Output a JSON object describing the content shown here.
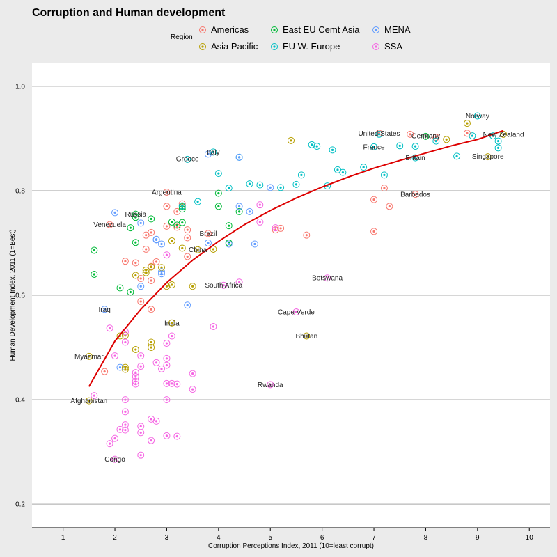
{
  "chart_data": {
    "type": "scatter",
    "title": "Corruption and Human development",
    "xlabel": "Corruption Perceptions Index, 2011 (10=least corrupt)",
    "ylabel": "Human Development Index, 2011 (1=Best)",
    "xlim": [
      0.4,
      10.4
    ],
    "ylim": [
      0.155,
      1.045
    ],
    "x_ticks": [
      1,
      2,
      3,
      4,
      5,
      6,
      7,
      8,
      9,
      10
    ],
    "y_ticks": [
      0.2,
      0.4,
      0.6,
      0.8,
      1.0
    ],
    "y_tick_labels": [
      "0.2",
      "0.4",
      "0.6",
      "0.8",
      "1.0"
    ],
    "grid": "horizontal",
    "legend": {
      "title": "Region",
      "placement": "top",
      "entries": [
        {
          "name": "Americas",
          "color": "#f8766d"
        },
        {
          "name": "Asia Pacific",
          "color": "#b79f00"
        },
        {
          "name": "East EU Cemt Asia",
          "color": "#00ba38"
        },
        {
          "name": "EU W. Europe",
          "color": "#00bfc4"
        },
        {
          "name": "MENA",
          "color": "#619cff"
        },
        {
          "name": "SSA",
          "color": "#f564e3"
        }
      ]
    },
    "trend": {
      "color": "#dd0000",
      "x": [
        1.5,
        2.0,
        2.5,
        3.0,
        3.5,
        4.0,
        4.5,
        5.0,
        5.5,
        6.0,
        6.5,
        7.0,
        7.5,
        8.0,
        8.5,
        9.0,
        9.5
      ],
      "y": [
        0.425,
        0.512,
        0.573,
        0.624,
        0.667,
        0.703,
        0.735,
        0.762,
        0.786,
        0.807,
        0.826,
        0.843,
        0.858,
        0.872,
        0.886,
        0.898,
        0.915
      ]
    },
    "series": [
      {
        "name": "Americas",
        "points": [
          [
            7.1,
            0.91
          ],
          [
            8.8,
            0.91
          ],
          [
            7.7,
            0.908
          ],
          [
            8.2,
            0.902
          ],
          [
            3.0,
            0.797
          ],
          [
            7.2,
            0.805
          ],
          [
            7.8,
            0.793
          ],
          [
            7.0,
            0.783
          ],
          [
            7.3,
            0.77
          ],
          [
            3.0,
            0.77
          ],
          [
            3.2,
            0.76
          ],
          [
            3.3,
            0.775
          ],
          [
            3.0,
            0.732
          ],
          [
            3.4,
            0.725
          ],
          [
            3.2,
            0.73
          ],
          [
            5.7,
            0.715
          ],
          [
            7.0,
            0.722
          ],
          [
            5.2,
            0.728
          ],
          [
            5.1,
            0.725
          ],
          [
            3.8,
            0.718
          ],
          [
            2.7,
            0.72
          ],
          [
            2.6,
            0.715
          ],
          [
            3.4,
            0.71
          ],
          [
            2.6,
            0.688
          ],
          [
            2.8,
            0.664
          ],
          [
            2.7,
            0.655
          ],
          [
            2.2,
            0.665
          ],
          [
            2.5,
            0.632
          ],
          [
            2.7,
            0.628
          ],
          [
            2.5,
            0.588
          ],
          [
            2.7,
            0.573
          ],
          [
            1.9,
            0.735
          ],
          [
            2.4,
            0.662
          ],
          [
            1.8,
            0.454
          ],
          [
            3.4,
            0.674
          ]
        ]
      },
      {
        "name": "Asia Pacific",
        "points": [
          [
            5.4,
            0.896
          ],
          [
            8.8,
            0.929
          ],
          [
            9.2,
            0.865
          ],
          [
            8.4,
            0.898
          ],
          [
            9.5,
            0.908
          ],
          [
            3.6,
            0.687
          ],
          [
            3.3,
            0.69
          ],
          [
            3.1,
            0.704
          ],
          [
            3.9,
            0.688
          ],
          [
            2.7,
            0.654
          ],
          [
            2.6,
            0.643
          ],
          [
            2.6,
            0.648
          ],
          [
            2.4,
            0.638
          ],
          [
            3.0,
            0.617
          ],
          [
            3.5,
            0.617
          ],
          [
            3.1,
            0.62
          ],
          [
            3.1,
            0.547
          ],
          [
            2.1,
            0.522
          ],
          [
            2.2,
            0.523
          ],
          [
            2.7,
            0.51
          ],
          [
            2.7,
            0.5
          ],
          [
            2.4,
            0.496
          ],
          [
            2.2,
            0.462
          ],
          [
            2.2,
            0.458
          ],
          [
            5.7,
            0.522
          ],
          [
            1.5,
            0.483
          ],
          [
            1.5,
            0.398
          ],
          [
            2.9,
            0.653
          ]
        ]
      },
      {
        "name": "East EU Cemt Asia",
        "points": [
          [
            8.0,
            0.904
          ],
          [
            4.0,
            0.795
          ],
          [
            3.3,
            0.769
          ],
          [
            3.3,
            0.765
          ],
          [
            4.0,
            0.77
          ],
          [
            4.4,
            0.76
          ],
          [
            4.2,
            0.733
          ],
          [
            3.1,
            0.74
          ],
          [
            3.2,
            0.734
          ],
          [
            2.3,
            0.729
          ],
          [
            2.4,
            0.755
          ],
          [
            2.4,
            0.749
          ],
          [
            2.7,
            0.746
          ],
          [
            2.4,
            0.701
          ],
          [
            4.2,
            0.7
          ],
          [
            1.6,
            0.686
          ],
          [
            1.6,
            0.64
          ],
          [
            2.1,
            0.614
          ],
          [
            2.3,
            0.606
          ],
          [
            3.3,
            0.739
          ]
        ]
      },
      {
        "name": "EU W. Europe",
        "points": [
          [
            9.0,
            0.943
          ],
          [
            9.4,
            0.895
          ],
          [
            9.3,
            0.905
          ],
          [
            8.9,
            0.905
          ],
          [
            9.4,
            0.882
          ],
          [
            8.6,
            0.866
          ],
          [
            7.8,
            0.885
          ],
          [
            7.5,
            0.886
          ],
          [
            7.0,
            0.884
          ],
          [
            7.8,
            0.863
          ],
          [
            8.2,
            0.895
          ],
          [
            7.1,
            0.908
          ],
          [
            3.4,
            0.86
          ],
          [
            3.9,
            0.874
          ],
          [
            4.4,
            0.864
          ],
          [
            5.8,
            0.888
          ],
          [
            5.9,
            0.885
          ],
          [
            6.2,
            0.878
          ],
          [
            6.4,
            0.835
          ],
          [
            6.8,
            0.845
          ],
          [
            6.3,
            0.84
          ],
          [
            7.2,
            0.83
          ],
          [
            5.5,
            0.812
          ],
          [
            5.6,
            0.83
          ],
          [
            6.1,
            0.809
          ],
          [
            4.6,
            0.813
          ],
          [
            4.8,
            0.811
          ],
          [
            4.0,
            0.833
          ],
          [
            3.6,
            0.779
          ],
          [
            4.2,
            0.805
          ],
          [
            5.2,
            0.806
          ],
          [
            3.3,
            0.771
          ]
        ]
      },
      {
        "name": "MENA",
        "points": [
          [
            4.4,
            0.864
          ],
          [
            5.0,
            0.806
          ],
          [
            4.4,
            0.77
          ],
          [
            4.6,
            0.76
          ],
          [
            3.8,
            0.7
          ],
          [
            4.7,
            0.698
          ],
          [
            2.9,
            0.698
          ],
          [
            2.5,
            0.738
          ],
          [
            2.8,
            0.707
          ],
          [
            2.9,
            0.645
          ],
          [
            2.9,
            0.641
          ],
          [
            2.8,
            0.706
          ],
          [
            2.5,
            0.617
          ],
          [
            3.4,
            0.581
          ],
          [
            1.8,
            0.573
          ],
          [
            2.1,
            0.462
          ],
          [
            2.0,
            0.758
          ],
          [
            3.8,
            0.87
          ],
          [
            4.2,
            0.698
          ]
        ]
      },
      {
        "name": "SSA",
        "points": [
          [
            6.1,
            0.633
          ],
          [
            4.1,
            0.619
          ],
          [
            4.4,
            0.625
          ],
          [
            5.5,
            0.568
          ],
          [
            5.0,
            0.429
          ],
          [
            5.1,
            0.729
          ],
          [
            4.8,
            0.74
          ],
          [
            4.8,
            0.773
          ],
          [
            3.0,
            0.677
          ],
          [
            3.9,
            0.54
          ],
          [
            1.9,
            0.537
          ],
          [
            3.1,
            0.522
          ],
          [
            2.2,
            0.53
          ],
          [
            2.2,
            0.51
          ],
          [
            2.0,
            0.484
          ],
          [
            3.0,
            0.479
          ],
          [
            3.0,
            0.466
          ],
          [
            2.4,
            0.452
          ],
          [
            2.4,
            0.444
          ],
          [
            2.4,
            0.435
          ],
          [
            2.4,
            0.43
          ],
          [
            2.5,
            0.484
          ],
          [
            2.5,
            0.464
          ],
          [
            2.9,
            0.459
          ],
          [
            3.0,
            0.431
          ],
          [
            3.1,
            0.431
          ],
          [
            3.2,
            0.43
          ],
          [
            3.5,
            0.45
          ],
          [
            3.5,
            0.42
          ],
          [
            3.0,
            0.4
          ],
          [
            2.2,
            0.4
          ],
          [
            2.2,
            0.377
          ],
          [
            2.2,
            0.352
          ],
          [
            2.2,
            0.342
          ],
          [
            2.5,
            0.349
          ],
          [
            2.5,
            0.337
          ],
          [
            2.7,
            0.363
          ],
          [
            2.8,
            0.359
          ],
          [
            2.1,
            0.343
          ],
          [
            2.0,
            0.326
          ],
          [
            1.9,
            0.316
          ],
          [
            2.7,
            0.322
          ],
          [
            3.0,
            0.331
          ],
          [
            3.2,
            0.33
          ],
          [
            2.0,
            0.286
          ],
          [
            2.5,
            0.294
          ],
          [
            1.6,
            0.408
          ],
          [
            2.8,
            0.471
          ],
          [
            3.0,
            0.508
          ]
        ]
      }
    ],
    "annotations": [
      {
        "text": "Norway",
        "x": 9.0,
        "y": 0.943
      },
      {
        "text": "United States",
        "x": 7.1,
        "y": 0.91
      },
      {
        "text": "Germany",
        "x": 8.0,
        "y": 0.905
      },
      {
        "text": "New Zealand",
        "x": 9.5,
        "y": 0.908
      },
      {
        "text": "France",
        "x": 7.0,
        "y": 0.884
      },
      {
        "text": "Italy",
        "x": 3.9,
        "y": 0.874
      },
      {
        "text": "Britain",
        "x": 7.8,
        "y": 0.863
      },
      {
        "text": "Singapore",
        "x": 9.2,
        "y": 0.866
      },
      {
        "text": "Greece",
        "x": 3.4,
        "y": 0.861
      },
      {
        "text": "Argentina",
        "x": 3.0,
        "y": 0.797
      },
      {
        "text": "Barbados",
        "x": 7.8,
        "y": 0.793
      },
      {
        "text": "Russia",
        "x": 2.4,
        "y": 0.755
      },
      {
        "text": "Venezuela",
        "x": 1.9,
        "y": 0.735
      },
      {
        "text": "Brazil",
        "x": 3.8,
        "y": 0.718
      },
      {
        "text": "China",
        "x": 3.6,
        "y": 0.687
      },
      {
        "text": "Botswana",
        "x": 6.1,
        "y": 0.633
      },
      {
        "text": "South Africa",
        "x": 4.1,
        "y": 0.619
      },
      {
        "text": "Iraq",
        "x": 1.8,
        "y": 0.573
      },
      {
        "text": "Cape Verde",
        "x": 5.5,
        "y": 0.568
      },
      {
        "text": "India",
        "x": 3.1,
        "y": 0.547
      },
      {
        "text": "Bhutan",
        "x": 5.7,
        "y": 0.522
      },
      {
        "text": "Myanmar",
        "x": 1.5,
        "y": 0.483
      },
      {
        "text": "Rwanda",
        "x": 5.0,
        "y": 0.429
      },
      {
        "text": "Afghanistan",
        "x": 1.5,
        "y": 0.398
      },
      {
        "text": "Congo",
        "x": 2.0,
        "y": 0.286
      }
    ]
  }
}
